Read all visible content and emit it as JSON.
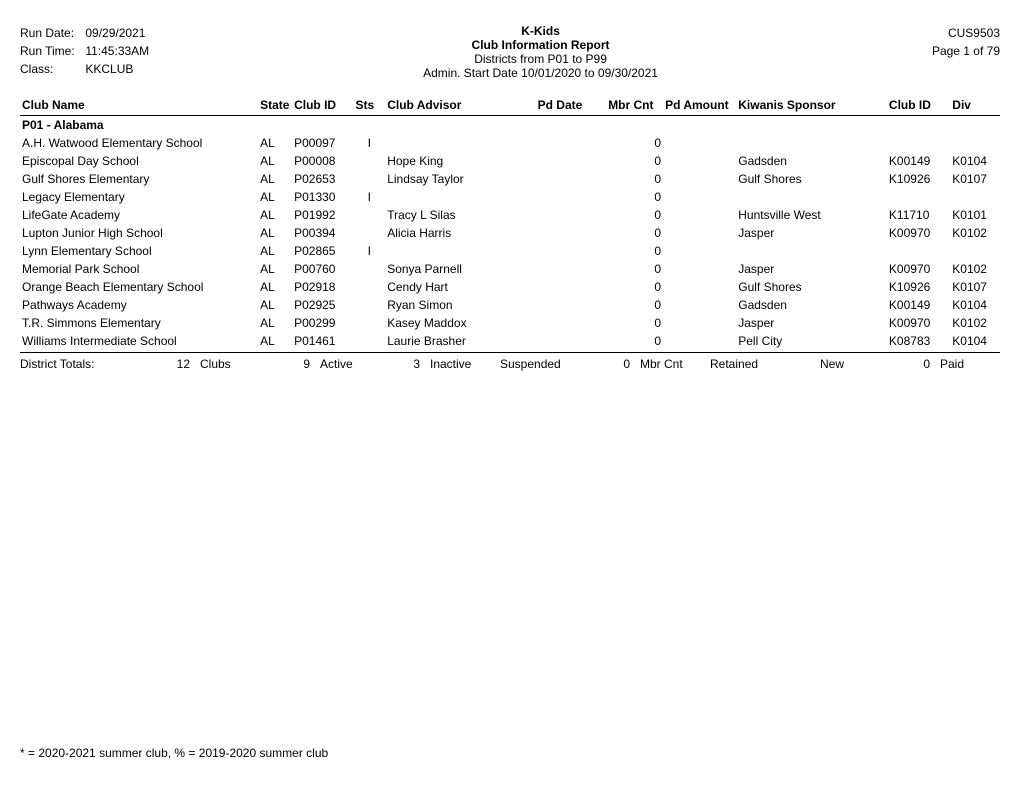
{
  "header": {
    "run_date_label": "Run Date:",
    "run_date": "09/29/2021",
    "run_time_label": "Run Time:",
    "run_time": "11:45:33AM",
    "class_label": "Class:",
    "class_value": "KKCLUB",
    "title1": "K-Kids",
    "title2": "Club Information Report",
    "line1": "Districts from P01 to P99",
    "line2": "Admin. Start Date 10/01/2020 to 09/30/2021",
    "report_code": "CUS9503",
    "page": "Page 1 of 79"
  },
  "columns": {
    "club_name": "Club Name",
    "state": "State",
    "club_id": "Club ID",
    "sts": "Sts",
    "club_advisor": "Club Advisor",
    "pd_date": "Pd Date",
    "mbr_cnt": "Mbr Cnt",
    "pd_amount": "Pd Amount",
    "kiwanis_sponsor": "Kiwanis Sponsor",
    "sp_club_id": "Club ID",
    "div": "Div"
  },
  "district": {
    "name": "P01 - Alabama"
  },
  "rows": [
    {
      "club_name": "A.H. Watwood Elementary School",
      "state": "AL",
      "club_id": "P00097",
      "sts": "I",
      "advisor": "",
      "pd_date": "",
      "mbr_cnt": "0",
      "pd_amount": "",
      "sponsor": "",
      "sp_club_id": "",
      "div": ""
    },
    {
      "club_name": "Episcopal Day School",
      "state": "AL",
      "club_id": "P00008",
      "sts": "",
      "advisor": "Hope King",
      "pd_date": "",
      "mbr_cnt": "0",
      "pd_amount": "",
      "sponsor": "Gadsden",
      "sp_club_id": "K00149",
      "div": "K0104"
    },
    {
      "club_name": "Gulf Shores Elementary",
      "state": "AL",
      "club_id": "P02653",
      "sts": "",
      "advisor": "Lindsay Taylor",
      "pd_date": "",
      "mbr_cnt": "0",
      "pd_amount": "",
      "sponsor": "Gulf Shores",
      "sp_club_id": "K10926",
      "div": "K0107"
    },
    {
      "club_name": "Legacy Elementary",
      "state": "AL",
      "club_id": "P01330",
      "sts": "I",
      "advisor": "",
      "pd_date": "",
      "mbr_cnt": "0",
      "pd_amount": "",
      "sponsor": "",
      "sp_club_id": "",
      "div": ""
    },
    {
      "club_name": "LifeGate Academy",
      "state": "AL",
      "club_id": "P01992",
      "sts": "",
      "advisor": "Tracy L Silas",
      "pd_date": "",
      "mbr_cnt": "0",
      "pd_amount": "",
      "sponsor": "Huntsville West",
      "sp_club_id": "K11710",
      "div": "K0101"
    },
    {
      "club_name": "Lupton Junior High School",
      "state": "AL",
      "club_id": "P00394",
      "sts": "",
      "advisor": "Alicia Harris",
      "pd_date": "",
      "mbr_cnt": "0",
      "pd_amount": "",
      "sponsor": "Jasper",
      "sp_club_id": "K00970",
      "div": "K0102"
    },
    {
      "club_name": "Lynn Elementary School",
      "state": "AL",
      "club_id": "P02865",
      "sts": "I",
      "advisor": "",
      "pd_date": "",
      "mbr_cnt": "0",
      "pd_amount": "",
      "sponsor": "",
      "sp_club_id": "",
      "div": ""
    },
    {
      "club_name": "Memorial Park School",
      "state": "AL",
      "club_id": "P00760",
      "sts": "",
      "advisor": "Sonya Parnell",
      "pd_date": "",
      "mbr_cnt": "0",
      "pd_amount": "",
      "sponsor": "Jasper",
      "sp_club_id": "K00970",
      "div": "K0102"
    },
    {
      "club_name": "Orange Beach Elementary School",
      "state": "AL",
      "club_id": "P02918",
      "sts": "",
      "advisor": "Cendy Hart",
      "pd_date": "",
      "mbr_cnt": "0",
      "pd_amount": "",
      "sponsor": "Gulf Shores",
      "sp_club_id": "K10926",
      "div": "K0107"
    },
    {
      "club_name": "Pathways Academy",
      "state": "AL",
      "club_id": "P02925",
      "sts": "",
      "advisor": "Ryan Simon",
      "pd_date": "",
      "mbr_cnt": "0",
      "pd_amount": "",
      "sponsor": "Gadsden",
      "sp_club_id": "K00149",
      "div": "K0104"
    },
    {
      "club_name": "T.R. Simmons Elementary",
      "state": "AL",
      "club_id": "P00299",
      "sts": "",
      "advisor": "Kasey Maddox",
      "pd_date": "",
      "mbr_cnt": "0",
      "pd_amount": "",
      "sponsor": "Jasper",
      "sp_club_id": "K00970",
      "div": "K0102"
    },
    {
      "club_name": "Williams Intermediate School",
      "state": "AL",
      "club_id": "P01461",
      "sts": "",
      "advisor": "Laurie Brasher",
      "pd_date": "",
      "mbr_cnt": "0",
      "pd_amount": "",
      "sponsor": "Pell City",
      "sp_club_id": "K08783",
      "div": "K0104"
    }
  ],
  "totals": {
    "label": "District Totals:",
    "clubs_count": "12",
    "clubs_label": "Clubs",
    "active_count": "9",
    "active_label": "Active",
    "inactive_count": "3",
    "inactive_label": "Inactive",
    "suspended_label": "Suspended",
    "mbr_cnt_value": "0",
    "mbr_cnt_label": "Mbr Cnt",
    "retained_label": "Retained",
    "new_label": "New",
    "paid_value": "0",
    "paid_label": "Paid"
  },
  "footer": {
    "note": "* = 2020-2021 summer club,  % = 2019-2020 summer club"
  }
}
